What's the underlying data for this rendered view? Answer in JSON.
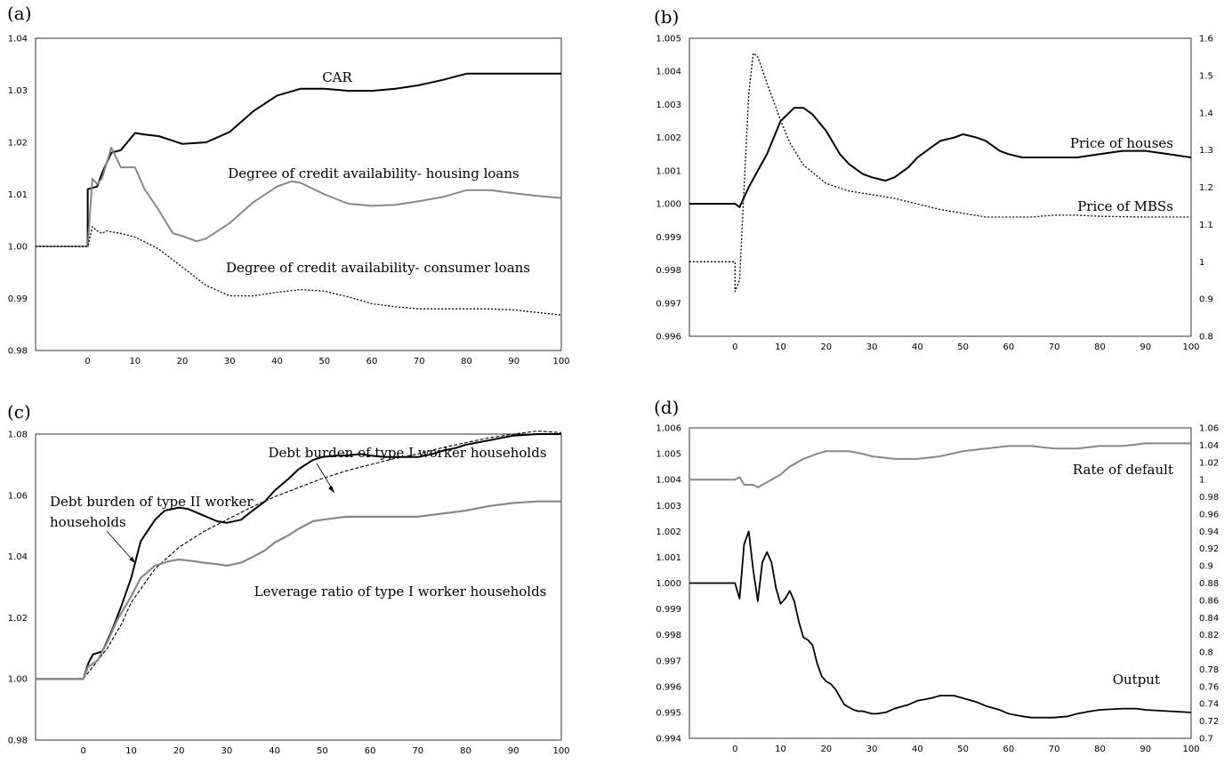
{
  "chart_data": [
    {
      "panel_label": "(a)",
      "type": "line",
      "xticks": [
        "0",
        "10",
        "20",
        "30",
        "40",
        "50",
        "60",
        "70",
        "80",
        "90",
        "100"
      ],
      "xlim": [
        -11,
        100
      ],
      "ylim": [
        0.98,
        1.04
      ],
      "yticks": [
        "0.98",
        "0.99",
        "1.00",
        "1.01",
        "1.02",
        "1.03",
        "1.04"
      ],
      "grid": false,
      "series": [
        {
          "name": "CAR",
          "color": "#000000",
          "width": 2.0,
          "dash": "",
          "x": [
            -11,
            0,
            0,
            2,
            3,
            5,
            7,
            10,
            12,
            15,
            20,
            25,
            30,
            35,
            40,
            45,
            50,
            55,
            60,
            65,
            70,
            75,
            80,
            85,
            90,
            95,
            100
          ],
          "y": [
            1.0,
            1.0,
            1.011,
            1.0115,
            1.014,
            1.018,
            1.0185,
            1.0218,
            1.0215,
            1.0212,
            1.0197,
            1.02,
            1.022,
            1.026,
            1.029,
            1.0303,
            1.0303,
            1.0299,
            1.0299,
            1.0303,
            1.031,
            1.032,
            1.0332,
            1.0332,
            1.0332,
            1.0332,
            1.0332
          ]
        },
        {
          "name": "Degree of credit availability- housing loans",
          "color": "#888888",
          "width": 2.0,
          "dash": "",
          "x": [
            -11,
            0,
            0,
            1,
            2,
            3,
            5,
            7,
            10,
            12,
            15,
            18,
            20,
            23,
            25,
            30,
            35,
            40,
            43,
            45,
            50,
            55,
            60,
            65,
            70,
            75,
            80,
            85,
            90,
            95,
            100
          ],
          "y": [
            1.0,
            1.0,
            1.0,
            1.013,
            1.012,
            1.013,
            1.019,
            1.0152,
            1.0152,
            1.011,
            1.007,
            1.0025,
            1.002,
            1.001,
            1.0015,
            1.0045,
            1.0085,
            1.0115,
            1.0125,
            1.0122,
            1.01,
            1.0082,
            1.0078,
            1.008,
            1.0087,
            1.0095,
            1.0108,
            1.0108,
            1.0102,
            1.0097,
            1.0093
          ]
        },
        {
          "name": "Degree of credit availability- consumer loans",
          "color": "#000000",
          "width": 1.3,
          "dash": "2,2",
          "x": [
            -11,
            0,
            0,
            1,
            2,
            3,
            4,
            5,
            7,
            10,
            15,
            20,
            25,
            30,
            35,
            40,
            45,
            50,
            55,
            60,
            65,
            70,
            75,
            80,
            85,
            90,
            95,
            100
          ],
          "y": [
            1.0,
            1.0,
            1.0,
            1.0038,
            1.003,
            1.0025,
            1.003,
            1.0028,
            1.0025,
            1.0018,
            0.9995,
            0.996,
            0.9925,
            0.9905,
            0.9905,
            0.9912,
            0.9917,
            0.9914,
            0.9903,
            0.989,
            0.9884,
            0.988,
            0.988,
            0.988,
            0.988,
            0.9878,
            0.9873,
            0.9868
          ]
        }
      ],
      "annotations": [
        "CAR",
        "Degree of credit availability- housing loans",
        "Degree of credit availability- consumer loans"
      ]
    },
    {
      "panel_label": "(b)",
      "type": "line",
      "xticks": [
        "0",
        "10",
        "20",
        "30",
        "40",
        "50",
        "60",
        "70",
        "80",
        "90",
        "100"
      ],
      "xlim": [
        -10,
        100
      ],
      "ylim": [
        0.996,
        1.005
      ],
      "yticks": [
        "0.996",
        "0.997",
        "0.998",
        "0.999",
        "1.000",
        "1.001",
        "1.002",
        "1.003",
        "1.004",
        "1.005"
      ],
      "y2lim": [
        0.8,
        1.6
      ],
      "y2ticks": [
        "0.8",
        "0.9",
        "1",
        "1.1",
        "1.2",
        "1.3",
        "1.4",
        "1.5",
        "1.6"
      ],
      "grid": false,
      "series": [
        {
          "name": "Price of houses",
          "color": "#000000",
          "width": 2.0,
          "dash": "",
          "axis": "left",
          "x": [
            -10,
            0,
            1,
            3,
            5,
            7,
            10,
            13,
            15,
            17,
            20,
            23,
            25,
            28,
            30,
            33,
            35,
            38,
            40,
            43,
            45,
            48,
            50,
            53,
            55,
            58,
            60,
            63,
            65,
            70,
            75,
            80,
            85,
            88,
            90,
            95,
            100
          ],
          "y": [
            1.0,
            1.0,
            0.9999,
            1.0005,
            1.001,
            1.0015,
            1.0025,
            1.0029,
            1.0029,
            1.0027,
            1.0022,
            1.0015,
            1.0012,
            1.0009,
            1.0008,
            1.0007,
            1.0008,
            1.0011,
            1.0014,
            1.0017,
            1.0019,
            1.002,
            1.0021,
            1.002,
            1.0019,
            1.0016,
            1.0015,
            1.0014,
            1.0014,
            1.0014,
            1.0014,
            1.0015,
            1.0016,
            1.0016,
            1.0016,
            1.0015,
            1.0014
          ]
        },
        {
          "name": "Price of MBSs",
          "color": "#000000",
          "width": 1.3,
          "dash": "2,2",
          "axis": "right",
          "x": [
            -10,
            0,
            0,
            1,
            2,
            3,
            4,
            5,
            7,
            10,
            12,
            15,
            20,
            25,
            30,
            35,
            40,
            45,
            50,
            55,
            60,
            65,
            70,
            75,
            80,
            90,
            100
          ],
          "y": [
            1.0,
            1.0,
            0.92,
            0.95,
            1.2,
            1.45,
            1.56,
            1.55,
            1.48,
            1.38,
            1.32,
            1.26,
            1.21,
            1.19,
            1.18,
            1.17,
            1.155,
            1.14,
            1.13,
            1.12,
            1.12,
            1.12,
            1.125,
            1.125,
            1.122,
            1.12,
            1.12
          ]
        }
      ],
      "annotations": [
        "Price of houses",
        "Price of MBSs"
      ]
    },
    {
      "panel_label": "(c)",
      "type": "line",
      "xticks": [
        "0",
        "10",
        "20",
        "30",
        "40",
        "50",
        "60",
        "70",
        "80",
        "90",
        "100"
      ],
      "xlim": [
        -10,
        100
      ],
      "ylim": [
        0.98,
        1.08
      ],
      "yticks": [
        "0.98",
        "1.00",
        "1.02",
        "1.04",
        "1.06",
        "1.08"
      ],
      "grid": false,
      "series": [
        {
          "name": "Debt burden of type II worker households",
          "color": "#000000",
          "width": 2.0,
          "dash": "",
          "x": [
            -10,
            0,
            1,
            2,
            4,
            6,
            8,
            10,
            12,
            15,
            17,
            20,
            22,
            25,
            28,
            30,
            33,
            35,
            38,
            40,
            43,
            45,
            48,
            50,
            53,
            55,
            58,
            60,
            63,
            65,
            68,
            70,
            73,
            75,
            78,
            80,
            85,
            90,
            95,
            100
          ],
          "y": [
            1.0,
            1.0,
            1.005,
            1.008,
            1.009,
            1.016,
            1.024,
            1.033,
            1.045,
            1.052,
            1.055,
            1.056,
            1.0555,
            1.0535,
            1.0515,
            1.051,
            1.052,
            1.0545,
            1.058,
            1.0615,
            1.0655,
            1.0685,
            1.0715,
            1.0725,
            1.073,
            1.073,
            1.0735,
            1.073,
            1.0725,
            1.0725,
            1.0725,
            1.0725,
            1.0735,
            1.0745,
            1.0755,
            1.0765,
            1.078,
            1.0795,
            1.08,
            1.08
          ]
        },
        {
          "name": "Debt burden of type I worker households",
          "color": "#000000",
          "width": 1.1,
          "dash": "4,2",
          "x": [
            -10,
            0,
            2,
            5,
            8,
            10,
            15,
            20,
            25,
            30,
            35,
            40,
            45,
            50,
            55,
            60,
            65,
            70,
            75,
            80,
            85,
            90,
            95,
            100
          ],
          "y": [
            1.0,
            1.0,
            1.004,
            1.01,
            1.018,
            1.025,
            1.036,
            1.043,
            1.048,
            1.052,
            1.056,
            1.0595,
            1.0625,
            1.0655,
            1.068,
            1.07,
            1.072,
            1.0735,
            1.0755,
            1.0772,
            1.0788,
            1.08,
            1.081,
            1.0805
          ]
        },
        {
          "name": "Leverage ratio of type I worker households",
          "color": "#888888",
          "width": 2.2,
          "dash": "",
          "x": [
            -10,
            0,
            1,
            3,
            5,
            7,
            10,
            12,
            15,
            18,
            20,
            23,
            25,
            28,
            30,
            33,
            35,
            38,
            40,
            43,
            45,
            48,
            50,
            55,
            60,
            65,
            70,
            75,
            80,
            85,
            90,
            95,
            100
          ],
          "y": [
            1.0,
            1.0,
            1.004,
            1.006,
            1.012,
            1.019,
            1.027,
            1.033,
            1.037,
            1.0385,
            1.039,
            1.0385,
            1.038,
            1.0375,
            1.037,
            1.038,
            1.0395,
            1.042,
            1.0445,
            1.047,
            1.049,
            1.0515,
            1.052,
            1.053,
            1.053,
            1.053,
            1.053,
            1.054,
            1.055,
            1.0565,
            1.0575,
            1.058,
            1.058
          ]
        }
      ],
      "annotations": [
        "Debt burden of type I worker households",
        "Debt burden of type II worker",
        "households",
        "Leverage ratio of type I worker households"
      ]
    },
    {
      "panel_label": "(d)",
      "type": "line",
      "xticks": [
        "0",
        "10",
        "20",
        "30",
        "40",
        "50",
        "60",
        "70",
        "80",
        "90",
        "100"
      ],
      "xlim": [
        -10,
        100
      ],
      "ylim": [
        0.994,
        1.006
      ],
      "yticks": [
        "0.994",
        "0.995",
        "0.996",
        "0.997",
        "0.998",
        "0.999",
        "1.000",
        "1.001",
        "1.002",
        "1.003",
        "1.004",
        "1.005",
        "1.006"
      ],
      "y2lim": [
        0.7,
        1.06
      ],
      "y2ticks": [
        "0.7",
        "0.72",
        "0.74",
        "0.76",
        "0.78",
        "0.8",
        "0.82",
        "0.84",
        "0.86",
        "0.88",
        "0.9",
        "0.92",
        "0.94",
        "0.96",
        "0.98",
        "1",
        "1.02",
        "1.04",
        "1.06"
      ],
      "grid": false,
      "series": [
        {
          "name": "Rate of default",
          "color": "#888888",
          "width": 2.0,
          "dash": "",
          "axis": "left",
          "x": [
            -10,
            0,
            1,
            2,
            3,
            4,
            5,
            6,
            7,
            8,
            10,
            12,
            15,
            18,
            20,
            22,
            25,
            28,
            30,
            35,
            40,
            45,
            50,
            55,
            60,
            65,
            70,
            75,
            80,
            85,
            90,
            95,
            100
          ],
          "y": [
            1.004,
            1.004,
            1.0041,
            1.0038,
            1.0038,
            1.0038,
            1.0037,
            1.0038,
            1.0039,
            1.004,
            1.0042,
            1.0045,
            1.0048,
            1.005,
            1.0051,
            1.0051,
            1.0051,
            1.005,
            1.0049,
            1.0048,
            1.0048,
            1.0049,
            1.0051,
            1.0052,
            1.0053,
            1.0053,
            1.0052,
            1.0052,
            1.0053,
            1.0053,
            1.0054,
            1.0054,
            1.0054
          ]
        },
        {
          "name": "Output",
          "color": "#000000",
          "width": 1.8,
          "dash": "",
          "axis": "left",
          "x": [
            -10,
            0,
            1,
            2,
            3,
            4,
            5,
            6,
            7,
            8,
            9,
            10,
            11,
            12,
            13,
            14,
            15,
            16,
            17,
            18,
            19,
            20,
            21,
            22,
            23,
            24,
            25,
            26,
            27,
            28,
            29,
            30,
            31,
            33,
            35,
            38,
            40,
            43,
            45,
            48,
            50,
            53,
            55,
            58,
            60,
            63,
            65,
            68,
            70,
            73,
            75,
            78,
            80,
            85,
            88,
            90,
            95,
            100
          ],
          "y": [
            1.0,
            1.0,
            0.9994,
            1.0015,
            1.002,
            1.0005,
            0.9993,
            1.0008,
            1.0012,
            1.0008,
            0.9998,
            0.9992,
            0.9994,
            0.9997,
            0.9993,
            0.9985,
            0.9979,
            0.9978,
            0.9976,
            0.9969,
            0.9964,
            0.9962,
            0.9961,
            0.9959,
            0.9956,
            0.9953,
            0.9952,
            0.9951,
            0.99505,
            0.99505,
            0.995,
            0.99495,
            0.99495,
            0.995,
            0.99515,
            0.9953,
            0.99545,
            0.99555,
            0.99565,
            0.99565,
            0.99555,
            0.9954,
            0.99525,
            0.9951,
            0.99495,
            0.99485,
            0.9948,
            0.9948,
            0.9948,
            0.99485,
            0.99495,
            0.99505,
            0.9951,
            0.99515,
            0.99515,
            0.9951,
            0.99505,
            0.995
          ]
        }
      ],
      "annotations": [
        "Rate of default",
        "Output"
      ]
    }
  ]
}
